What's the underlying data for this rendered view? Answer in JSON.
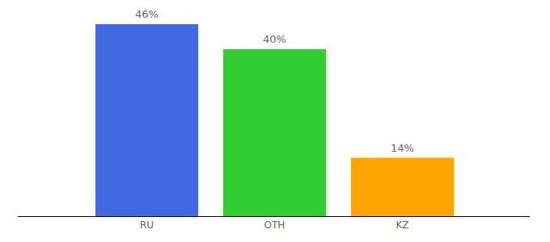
{
  "chart_data": {
    "type": "bar",
    "categories": [
      "RU",
      "OTH",
      "KZ"
    ],
    "values": [
      46,
      40,
      14
    ],
    "value_labels": [
      "46%",
      "40%",
      "14%"
    ],
    "colors": [
      "#4169e1",
      "#32cd32",
      "#ffa500"
    ],
    "data_labels": true,
    "tick_labels": "x",
    "grid": false
  }
}
